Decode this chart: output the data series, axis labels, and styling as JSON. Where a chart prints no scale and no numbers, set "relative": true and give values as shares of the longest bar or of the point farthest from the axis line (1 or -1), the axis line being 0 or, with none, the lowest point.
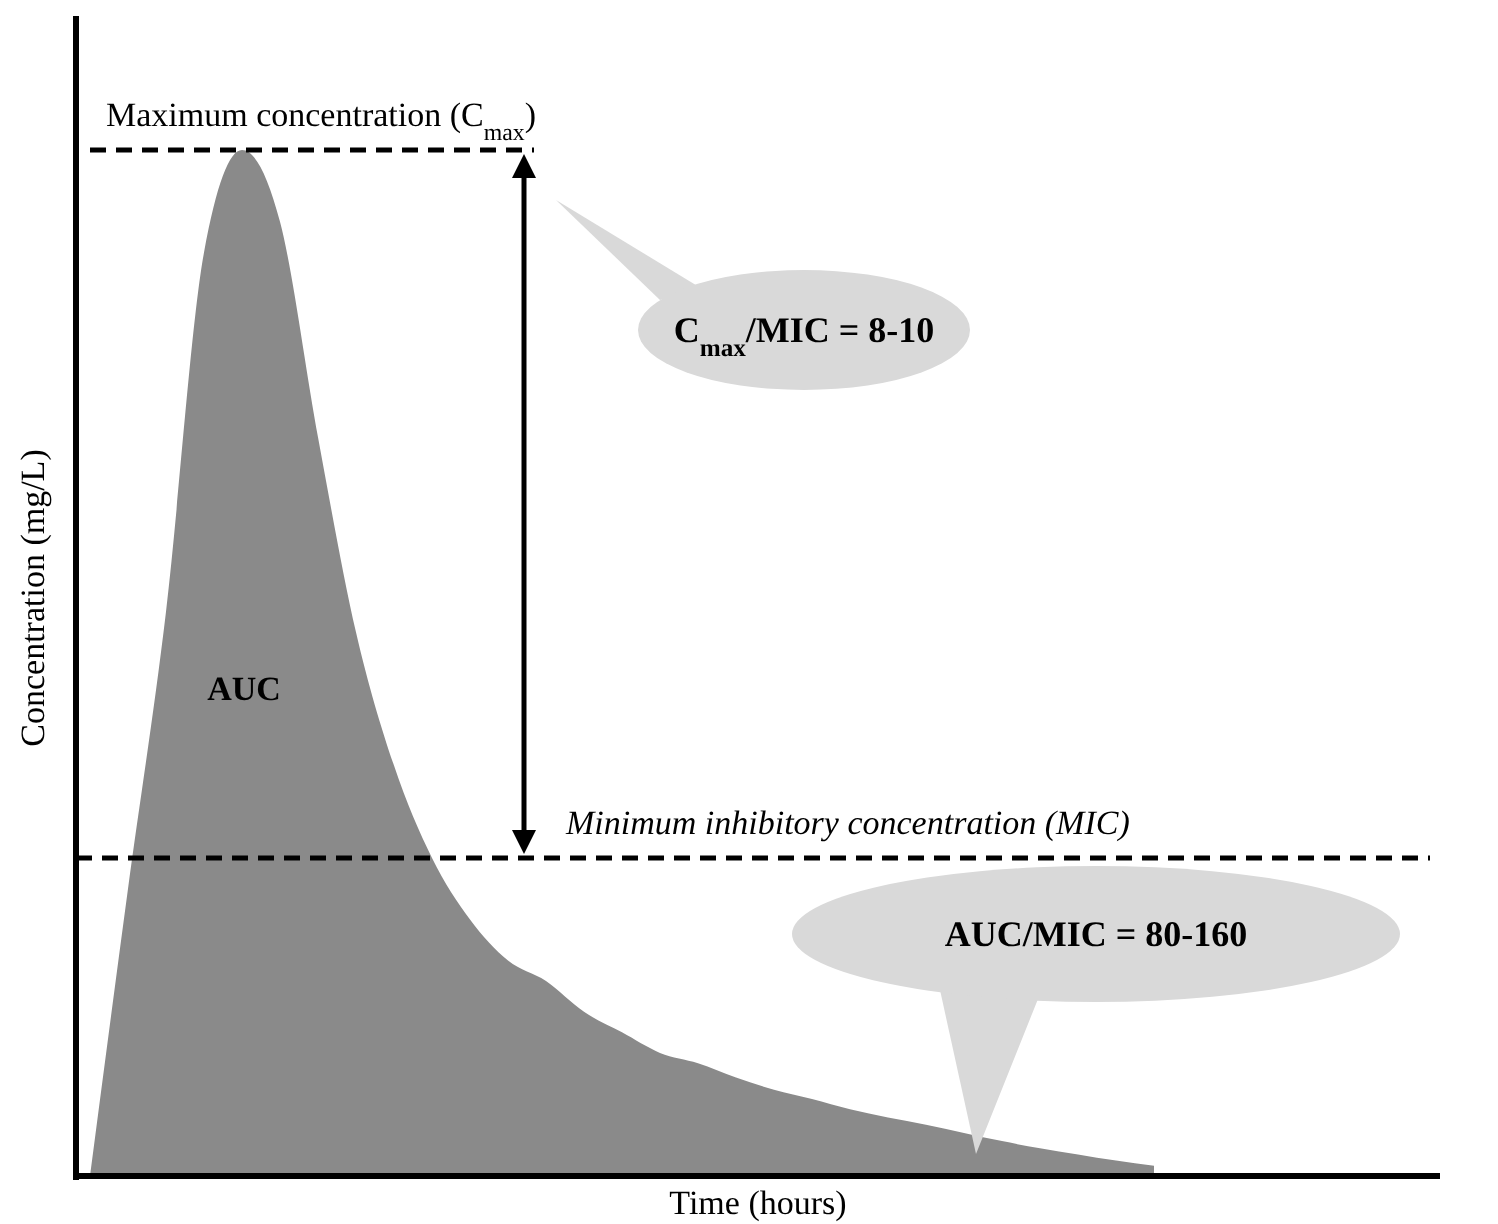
{
  "chart_data": {
    "type": "area",
    "relative": true,
    "xlabel": "Time (hours)",
    "ylabel": "Concentration (mg/L)",
    "categories": [
      null,
      null,
      null,
      null,
      null,
      null,
      null,
      null,
      null,
      null,
      null,
      null,
      null,
      null,
      null,
      null,
      null,
      null,
      null,
      null,
      null,
      null,
      null,
      null,
      null,
      null,
      null,
      null,
      null,
      null,
      null,
      null,
      null,
      null,
      null,
      null
    ],
    "series": [
      {
        "color": "#8a8a8a",
        "values": [
          0,
          0.28,
          0.55,
          0.9,
          1,
          0.93,
          0.72,
          0.53,
          0.4,
          0.31,
          0.25,
          0.21,
          0.19,
          0.16,
          0.14,
          0.12,
          0.11,
          0.096,
          0.084,
          0.075,
          0.065,
          0.057,
          0.05,
          0.042,
          0.034,
          0.027,
          0.021,
          0.015,
          0.01,
          null,
          null,
          null,
          null,
          null,
          null,
          null
        ]
      }
    ],
    "ref_lines": [
      {
        "axis": "y",
        "value": 1,
        "label": "Maximum concentration (C$_{max}$)",
        "line_style": "dashed"
      },
      {
        "axis": "y",
        "value": 0.31,
        "label": "Minimum inhibitory concentration (MIC)",
        "line_style": "dashed"
      }
    ],
    "annotations": [
      "AUC",
      "C$_{max}$/MIC = 8-10",
      "AUC/MIC = 80-160"
    ]
  }
}
